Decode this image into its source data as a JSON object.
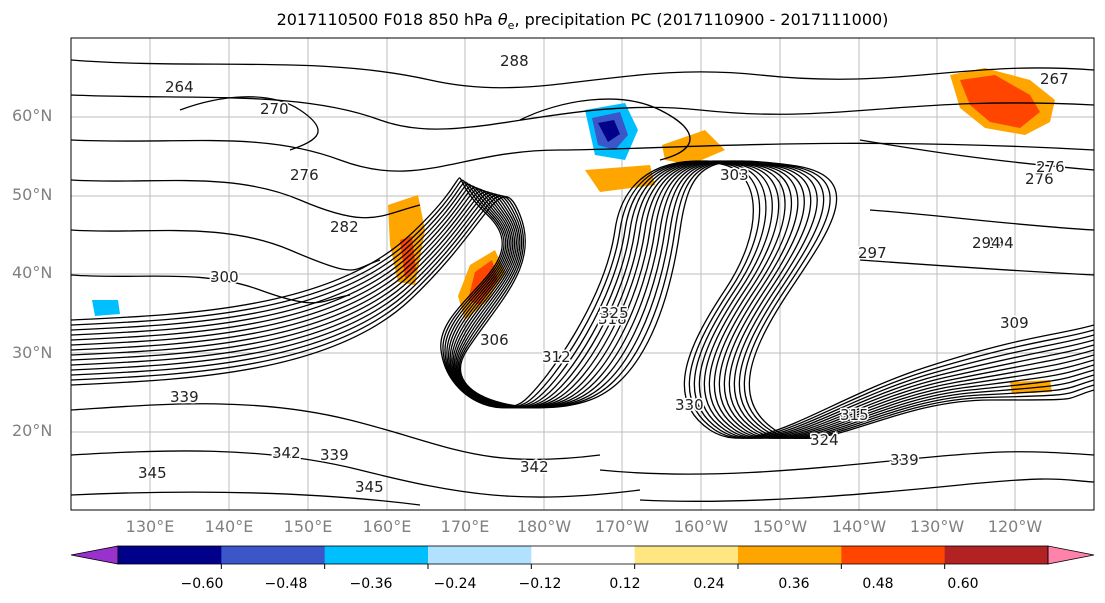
{
  "title": {
    "prefix": "2017110500 F018 850 hPa ",
    "theta_symbol": "θ",
    "theta_subscript": "e",
    "suffix": ", precipitation PC (2017110900 - 2017111000)"
  },
  "map": {
    "region": "North Pacific",
    "lat_labels": [
      "60°N",
      "50°N",
      "40°N",
      "30°N",
      "20°N"
    ],
    "lon_labels": [
      "130°E",
      "140°E",
      "150°E",
      "160°E",
      "170°E",
      "180°W",
      "170°W",
      "160°W",
      "150°W",
      "140°W",
      "130°W",
      "120°W"
    ],
    "contour_labels": [
      "288",
      "264",
      "270",
      "276",
      "282",
      "276",
      "294",
      "300",
      "306",
      "303",
      "297",
      "294",
      "312",
      "318",
      "309",
      "325",
      "339",
      "339",
      "342",
      "345",
      "330",
      "324",
      "315",
      "339",
      "342",
      "345",
      "276",
      "267"
    ]
  },
  "colorbar": {
    "colors": [
      "#9932cc",
      "#00008b",
      "#3a56c8",
      "#00bfff",
      "#b0e2ff",
      "#ffffff",
      "#ffe680",
      "#ffa500",
      "#ff4500",
      "#b22222",
      "#ff82ab"
    ],
    "tick_labels": [
      "−0.60",
      "−0.48",
      "−0.36",
      "−0.24",
      "−0.12",
      "0.12",
      "0.24",
      "0.36",
      "0.48",
      "0.60"
    ]
  }
}
